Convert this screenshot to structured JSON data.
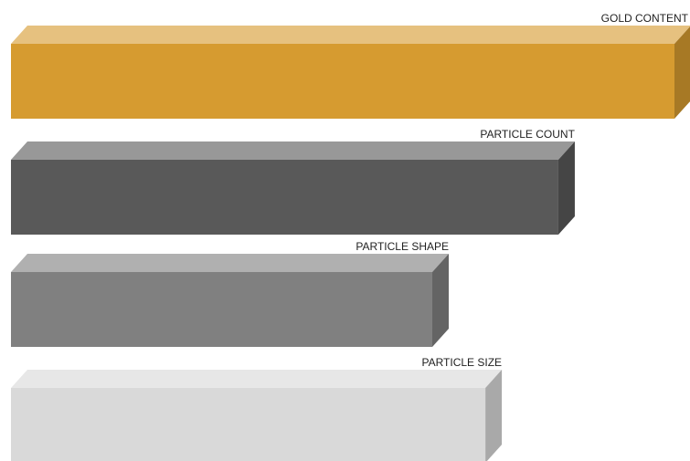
{
  "chart_data": {
    "type": "bar",
    "orientation": "horizontal",
    "style": "3d",
    "categories": [
      "GOLD CONTENT",
      "PARTICLE COUNT",
      "PARTICLE SHAPE",
      "PARTICLE SIZE"
    ],
    "values": [
      100,
      82.5,
      63.5,
      71.5
    ],
    "colors": [
      "#D69B30",
      "#595959",
      "#808080",
      "#D9D9D9"
    ],
    "title": "",
    "xlabel": "",
    "ylabel": "",
    "xlim": [
      0,
      100
    ],
    "grid": false,
    "legend": "none"
  }
}
